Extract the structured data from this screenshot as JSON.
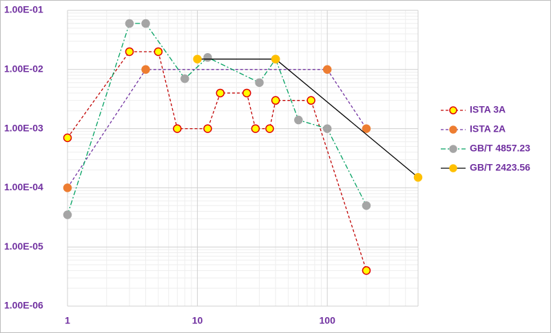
{
  "chart_data": {
    "type": "line",
    "xscale": "log",
    "yscale": "log",
    "grid": true,
    "legend": "right",
    "xlim": [
      1,
      500
    ],
    "xticks": [
      1,
      10,
      100
    ],
    "ylim": [
      1e-06,
      0.1
    ],
    "yticks": [
      {
        "value": 1e-06,
        "label": "1.00E-06"
      },
      {
        "value": 1e-05,
        "label": "1.00E-05"
      },
      {
        "value": 0.0001,
        "label": "1.00E-04"
      },
      {
        "value": 0.001,
        "label": "1.00E-03"
      },
      {
        "value": 0.01,
        "label": "1.00E-02"
      },
      {
        "value": 0.1,
        "label": "1.00E-01"
      }
    ],
    "series": [
      {
        "name": "ISTA 3A",
        "color": "#c00000",
        "marker_color": "#ffff00",
        "marker_edge": "#e00000",
        "dash": "dashed",
        "x": [
          1,
          3,
          5,
          7,
          12,
          15,
          24,
          28,
          36,
          40,
          75,
          200
        ],
        "values": [
          0.0007,
          0.02,
          0.02,
          0.001,
          0.001,
          0.004,
          0.004,
          0.001,
          0.001,
          0.003,
          0.003,
          4e-06
        ]
      },
      {
        "name": "ISTA 2A",
        "color": "#7030a0",
        "marker_color": "#ed7d31",
        "marker_edge": "#ed7d31",
        "dash": "dashed",
        "x": [
          1,
          4,
          100,
          200
        ],
        "values": [
          0.0001,
          0.01,
          0.01,
          0.001
        ]
      },
      {
        "name": "GB/T 4857.23",
        "color": "#00a060",
        "marker_color": "#a5a5a5",
        "marker_edge": "#a5a5a5",
        "dash": "dashdot",
        "x": [
          1,
          3,
          4,
          8,
          12,
          30,
          40,
          60,
          100,
          200
        ],
        "values": [
          3.5e-05,
          0.06,
          0.06,
          0.007,
          0.016,
          0.006,
          0.015,
          0.0014,
          0.001,
          5e-05
        ]
      },
      {
        "name": "GB/T 2423.56",
        "color": "#000000",
        "marker_color": "#ffc000",
        "marker_edge": "#ffc000",
        "dash": "solid",
        "x": [
          10,
          40,
          500
        ],
        "values": [
          0.015,
          0.015,
          0.00015
        ]
      }
    ]
  }
}
